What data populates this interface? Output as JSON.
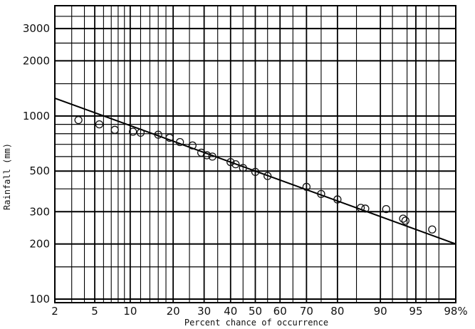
{
  "chart_data": {
    "type": "scatter",
    "title": "",
    "xlabel": "Percent chance of occurrence",
    "ylabel": "Rainfall (mm)",
    "x_scale": "normal-probability",
    "y_scale": "log",
    "xlim": [
      2,
      98
    ],
    "ylim": [
      100,
      4000
    ],
    "x_tick_labels": [
      {
        "value": 2,
        "label": "2"
      },
      {
        "value": 5,
        "label": "5"
      },
      {
        "value": 10,
        "label": "10"
      },
      {
        "value": 20,
        "label": "20"
      },
      {
        "value": 30,
        "label": "30"
      },
      {
        "value": 40,
        "label": "40"
      },
      {
        "value": 50,
        "label": "50"
      },
      {
        "value": 60,
        "label": "60"
      },
      {
        "value": 70,
        "label": "70"
      },
      {
        "value": 80,
        "label": "80"
      },
      {
        "value": 90,
        "label": "90"
      },
      {
        "value": 95,
        "label": "95"
      },
      {
        "value": 98,
        "label": "98%"
      }
    ],
    "y_tick_labels": [
      {
        "value": 100,
        "label": "100"
      },
      {
        "value": 200,
        "label": "200"
      },
      {
        "value": 300,
        "label": "300"
      },
      {
        "value": 500,
        "label": "500"
      },
      {
        "value": 1000,
        "label": "1000"
      },
      {
        "value": 2000,
        "label": "2000"
      },
      {
        "value": 3000,
        "label": "3000"
      }
    ],
    "y_minor_gridlines": [
      150,
      400,
      600,
      700,
      800,
      900,
      1500,
      2500,
      3500,
      4000
    ],
    "x_minor_gridlines": [
      3,
      4,
      6,
      7,
      8,
      9,
      12,
      14,
      16,
      18,
      25,
      35,
      45,
      55,
      65,
      75,
      85,
      92,
      94,
      96,
      97
    ],
    "grid": true,
    "points": [
      {
        "x": 3.5,
        "y": 950
      },
      {
        "x": 5.5,
        "y": 900
      },
      {
        "x": 7.5,
        "y": 840
      },
      {
        "x": 10.5,
        "y": 820
      },
      {
        "x": 12,
        "y": 810
      },
      {
        "x": 16,
        "y": 790
      },
      {
        "x": 19,
        "y": 760
      },
      {
        "x": 22,
        "y": 720
      },
      {
        "x": 26,
        "y": 690
      },
      {
        "x": 29,
        "y": 630
      },
      {
        "x": 31,
        "y": 610
      },
      {
        "x": 33,
        "y": 600
      },
      {
        "x": 40,
        "y": 560
      },
      {
        "x": 42,
        "y": 545
      },
      {
        "x": 45,
        "y": 520
      },
      {
        "x": 50,
        "y": 495
      },
      {
        "x": 55,
        "y": 470
      },
      {
        "x": 70,
        "y": 410
      },
      {
        "x": 75,
        "y": 375
      },
      {
        "x": 80,
        "y": 350
      },
      {
        "x": 86,
        "y": 315
      },
      {
        "x": 87,
        "y": 312
      },
      {
        "x": 91,
        "y": 310
      },
      {
        "x": 93.5,
        "y": 275
      },
      {
        "x": 93.8,
        "y": 268
      },
      {
        "x": 96.5,
        "y": 240
      }
    ],
    "fit_line": [
      {
        "x": 2,
        "y": 1250
      },
      {
        "x": 98,
        "y": 200
      }
    ]
  }
}
